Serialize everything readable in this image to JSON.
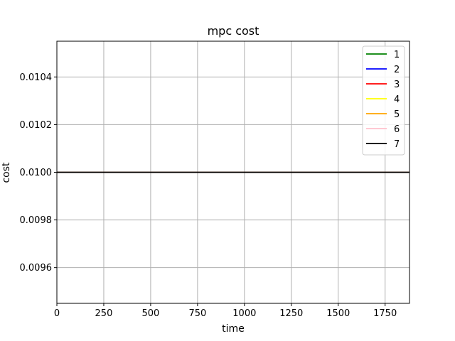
{
  "chart_data": {
    "type": "line",
    "title": "mpc cost",
    "xlabel": "time",
    "ylabel": "cost",
    "xlim": [
      0,
      1880
    ],
    "ylim": [
      0.00945,
      0.01055
    ],
    "xticks": [
      0,
      250,
      500,
      750,
      1000,
      1250,
      1500,
      1750
    ],
    "xtick_labels": [
      "0",
      "250",
      "500",
      "750",
      "1000",
      "1250",
      "1500",
      "1750"
    ],
    "yticks": [
      0.0096,
      0.0098,
      0.01,
      0.0102,
      0.0104
    ],
    "ytick_labels": [
      "0.0096",
      "0.0098",
      "0.0100",
      "0.0102",
      "0.0104"
    ],
    "grid": true,
    "legend_position": "top-right",
    "x": [
      0,
      1880
    ],
    "series": [
      {
        "name": "1",
        "color": "#008000",
        "values": [
          0.01,
          0.01
        ]
      },
      {
        "name": "2",
        "color": "#0000ff",
        "values": [
          0.01,
          0.01
        ]
      },
      {
        "name": "3",
        "color": "#ff0000",
        "values": [
          0.01,
          0.01
        ]
      },
      {
        "name": "4",
        "color": "#ffff00",
        "values": [
          0.01,
          0.01
        ]
      },
      {
        "name": "5",
        "color": "#ffa500",
        "values": [
          0.01,
          0.01
        ]
      },
      {
        "name": "6",
        "color": "#ffc0cb",
        "values": [
          0.01,
          0.01
        ]
      },
      {
        "name": "7",
        "color": "#000000",
        "values": [
          0.01,
          0.01
        ]
      }
    ]
  }
}
